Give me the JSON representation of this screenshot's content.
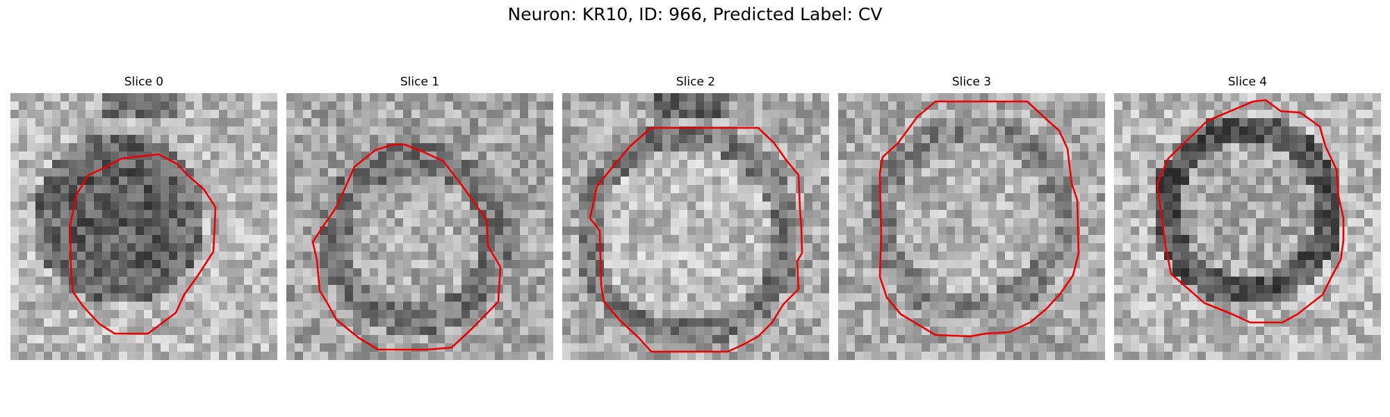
{
  "figure": {
    "title": "Neuron: KR10, ID: 966, Predicted Label: CV"
  },
  "slices": [
    {
      "label": "Slice 0"
    },
    {
      "label": "Slice 1"
    },
    {
      "label": "Slice 2"
    },
    {
      "label": "Slice 3"
    },
    {
      "label": "Slice 4"
    }
  ],
  "colors": {
    "contour": "#ee0000"
  }
}
